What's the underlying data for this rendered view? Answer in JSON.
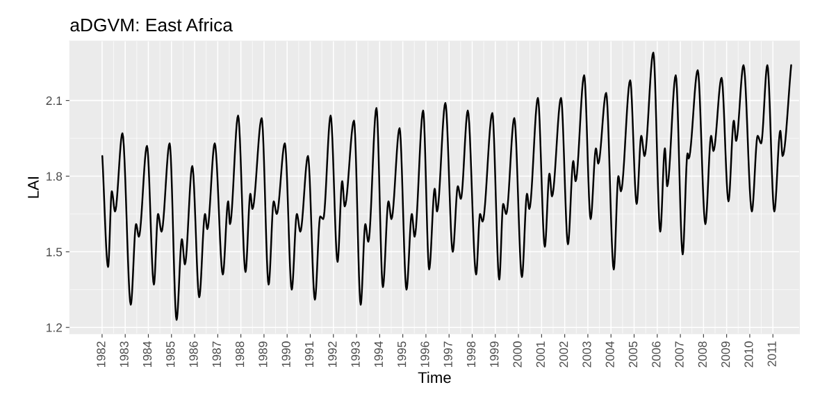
{
  "chart_data": {
    "type": "line",
    "title": "aDGVM: East Africa",
    "xlabel": "Time",
    "ylabel": "LAI",
    "x": [
      1982.01,
      1982.26,
      1982.42,
      1982.56,
      1982.88,
      1983.24,
      1983.47,
      1983.59,
      1983.94,
      1984.24,
      1984.42,
      1984.57,
      1984.92,
      1985.22,
      1985.45,
      1985.58,
      1985.9,
      1986.2,
      1986.45,
      1986.55,
      1986.87,
      1987.22,
      1987.45,
      1987.53,
      1987.88,
      1988.2,
      1988.41,
      1988.5,
      1988.9,
      1989.2,
      1989.42,
      1989.55,
      1989.9,
      1990.2,
      1990.42,
      1990.57,
      1990.9,
      1991.2,
      1991.43,
      1991.56,
      1991.88,
      1992.18,
      1992.38,
      1992.49,
      1992.89,
      1993.18,
      1993.38,
      1993.51,
      1993.86,
      1994.14,
      1994.38,
      1994.51,
      1994.86,
      1995.16,
      1995.39,
      1995.51,
      1995.88,
      1996.14,
      1996.38,
      1996.48,
      1996.84,
      1997.16,
      1997.38,
      1997.51,
      1997.81,
      1998.17,
      1998.34,
      1998.45,
      1998.87,
      1999.17,
      1999.34,
      1999.47,
      1999.82,
      2000.15,
      2000.37,
      2000.47,
      2000.84,
      2001.14,
      2001.34,
      2001.45,
      2001.84,
      2002.14,
      2002.37,
      2002.47,
      2002.84,
      2003.12,
      2003.35,
      2003.45,
      2003.79,
      2004.12,
      2004.32,
      2004.43,
      2004.83,
      2005.11,
      2005.31,
      2005.45,
      2005.83,
      2006.13,
      2006.33,
      2006.43,
      2006.8,
      2007.1,
      2007.31,
      2007.36,
      2007.75,
      2008.08,
      2008.33,
      2008.43,
      2008.78,
      2009.08,
      2009.31,
      2009.41,
      2009.73,
      2010.09,
      2010.34,
      2010.49,
      2010.76,
      2011.06,
      2011.32,
      2011.42,
      2011.79
    ],
    "series": [
      {
        "color": "#000000",
        "values": [
          1.88,
          1.44,
          1.74,
          1.66,
          1.97,
          1.29,
          1.61,
          1.56,
          1.92,
          1.37,
          1.65,
          1.58,
          1.93,
          1.23,
          1.55,
          1.45,
          1.84,
          1.32,
          1.65,
          1.59,
          1.93,
          1.41,
          1.7,
          1.61,
          2.04,
          1.42,
          1.73,
          1.67,
          2.03,
          1.37,
          1.7,
          1.65,
          1.93,
          1.35,
          1.65,
          1.58,
          1.88,
          1.31,
          1.64,
          1.63,
          2.04,
          1.46,
          1.78,
          1.68,
          2.02,
          1.29,
          1.61,
          1.54,
          2.07,
          1.36,
          1.7,
          1.63,
          1.99,
          1.35,
          1.65,
          1.56,
          2.06,
          1.43,
          1.75,
          1.66,
          2.09,
          1.5,
          1.76,
          1.71,
          2.06,
          1.41,
          1.65,
          1.62,
          2.05,
          1.39,
          1.69,
          1.65,
          2.03,
          1.4,
          1.73,
          1.67,
          2.11,
          1.52,
          1.81,
          1.72,
          2.11,
          1.53,
          1.86,
          1.78,
          2.2,
          1.63,
          1.91,
          1.85,
          2.13,
          1.43,
          1.8,
          1.74,
          2.18,
          1.69,
          1.96,
          1.88,
          2.29,
          1.58,
          1.91,
          1.76,
          2.2,
          1.49,
          1.89,
          1.87,
          2.22,
          1.61,
          1.96,
          1.9,
          2.19,
          1.7,
          2.02,
          1.94,
          2.24,
          1.66,
          1.96,
          1.93,
          2.24,
          1.66,
          1.98,
          1.88,
          2.24
        ]
      }
    ],
    "xlim": [
      1980.6,
      2012.15
    ],
    "ylim": [
      1.175,
      2.336
    ],
    "xticks": [
      1982,
      1983,
      1984,
      1985,
      1986,
      1987,
      1988,
      1989,
      1990,
      1991,
      1992,
      1993,
      1994,
      1995,
      1996,
      1997,
      1998,
      1999,
      2000,
      2001,
      2002,
      2003,
      2004,
      2005,
      2006,
      2007,
      2008,
      2009,
      2010,
      2011
    ],
    "yticks": [
      1.2,
      1.5,
      1.8,
      2.1
    ],
    "grid": true,
    "marker": "none",
    "line_style": "solid"
  }
}
